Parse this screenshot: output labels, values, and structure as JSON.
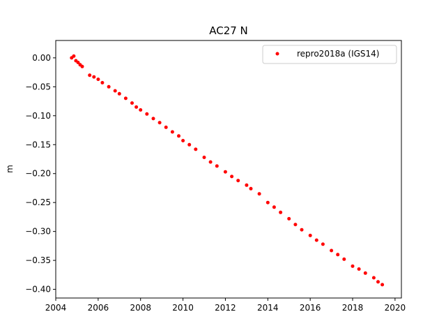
{
  "chart_data": {
    "type": "scatter",
    "title": "AC27 N",
    "xlabel": "",
    "ylabel": "m",
    "xlim": [
      2004.0,
      2020.3
    ],
    "ylim": [
      -0.415,
      0.03
    ],
    "x_ticks": [
      2004,
      2006,
      2008,
      2010,
      2012,
      2014,
      2016,
      2018,
      2020
    ],
    "x_tick_labels": [
      "2004",
      "2006",
      "2008",
      "2010",
      "2012",
      "2014",
      "2016",
      "2018",
      "2020"
    ],
    "y_ticks": [
      0.0,
      -0.05,
      -0.1,
      -0.15,
      -0.2,
      -0.25,
      -0.3,
      -0.35,
      -0.4
    ],
    "y_tick_labels": [
      "0.00",
      "−0.05",
      "−0.10",
      "−0.15",
      "−0.20",
      "−0.25",
      "−0.30",
      "−0.35",
      "−0.40"
    ],
    "grid": false,
    "legend_position": "top-right",
    "series": [
      {
        "name": "repro2018a (IGS14)",
        "color": "#ff0000",
        "marker": "circle",
        "x": [
          2004.75,
          2004.85,
          2004.95,
          2005.05,
          2005.15,
          2005.25,
          2005.6,
          2005.8,
          2006.0,
          2006.2,
          2006.5,
          2006.8,
          2007.0,
          2007.3,
          2007.6,
          2007.8,
          2008.0,
          2008.3,
          2008.6,
          2008.9,
          2009.2,
          2009.5,
          2009.8,
          2010.0,
          2010.3,
          2010.6,
          2011.0,
          2011.3,
          2011.6,
          2012.0,
          2012.3,
          2012.6,
          2013.0,
          2013.2,
          2013.6,
          2014.0,
          2014.3,
          2014.6,
          2015.0,
          2015.3,
          2015.6,
          2016.0,
          2016.3,
          2016.6,
          2017.0,
          2017.3,
          2017.6,
          2018.0,
          2018.3,
          2018.6,
          2019.0,
          2019.2,
          2019.4
        ],
        "y": [
          0.0,
          0.003,
          -0.005,
          -0.008,
          -0.012,
          -0.015,
          -0.03,
          -0.033,
          -0.037,
          -0.043,
          -0.05,
          -0.057,
          -0.062,
          -0.07,
          -0.078,
          -0.085,
          -0.09,
          -0.097,
          -0.105,
          -0.112,
          -0.12,
          -0.128,
          -0.135,
          -0.143,
          -0.15,
          -0.158,
          -0.172,
          -0.18,
          -0.187,
          -0.197,
          -0.205,
          -0.212,
          -0.22,
          -0.226,
          -0.235,
          -0.25,
          -0.258,
          -0.267,
          -0.278,
          -0.288,
          -0.297,
          -0.307,
          -0.315,
          -0.322,
          -0.333,
          -0.34,
          -0.348,
          -0.36,
          -0.365,
          -0.372,
          -0.38,
          -0.387,
          -0.392
        ]
      }
    ]
  }
}
